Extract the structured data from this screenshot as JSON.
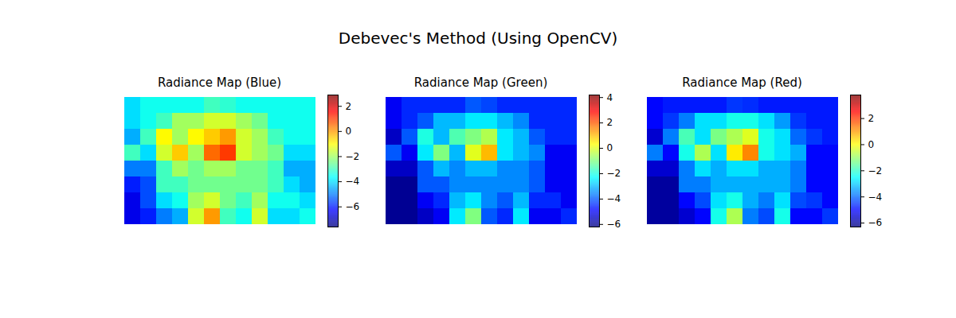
{
  "title": "Debevec's Method (Using OpenCV)",
  "chart_data": [
    {
      "type": "heatmap",
      "title": "Radiance Map (Blue)",
      "color": "jet",
      "tick_labels": false,
      "colorbar_range": [
        -7.6,
        2.9
      ],
      "colorbar_ticks": [
        -6,
        -4,
        -2,
        0,
        2
      ],
      "cells": [
        [
          -4,
          -3.5,
          -3.5,
          -3.5,
          -3.5,
          -3.0,
          -3.2,
          -3.5,
          -3.5,
          -3.5,
          -3.5,
          -3.5
        ],
        [
          -4,
          -3.5,
          -3,
          -2,
          -2,
          -1.5,
          -1.5,
          -2,
          -2.5,
          -3.5,
          -3.5,
          -3.5
        ],
        [
          -4.5,
          -3,
          -1,
          -2,
          -1,
          -0.5,
          0,
          -1.5,
          -2,
          -3,
          -3.5,
          -3.5
        ],
        [
          -3,
          -4,
          -1.5,
          -0.5,
          -2,
          0.5,
          1,
          -1.5,
          -2,
          -2.5,
          -4,
          -4
        ],
        [
          -5,
          -5,
          -3,
          -2,
          -2.5,
          -2,
          -2,
          -2.5,
          -2.5,
          -3,
          -4.5,
          -4.5
        ],
        [
          -6,
          -5.5,
          -3,
          -3,
          -2.5,
          -2.5,
          -2.5,
          -2.5,
          -2.5,
          -3,
          -4,
          -4.5
        ],
        [
          -6.5,
          -5.5,
          -4,
          -3.5,
          -2,
          -1.5,
          -2.5,
          -3,
          -2,
          -3.5,
          -3.5,
          -4
        ],
        [
          -6.5,
          -6,
          -5,
          -4.5,
          -1.5,
          0,
          -3,
          -3.5,
          -1.5,
          -4,
          -4,
          -3.5
        ]
      ]
    },
    {
      "type": "heatmap",
      "title": "Radiance Map (Green)",
      "color": "jet",
      "tick_labels": false,
      "colorbar_range": [
        -6.2,
        4.2
      ],
      "colorbar_ticks": [
        -6,
        -4,
        -2,
        0,
        2,
        4
      ],
      "cells": [
        [
          -5,
          -4.5,
          -4.5,
          -4.5,
          -4.5,
          -4,
          -4.2,
          -4.5,
          -4.5,
          -4.5,
          -4.5,
          -4.5
        ],
        [
          -5,
          -4.5,
          -4,
          -3,
          -3,
          -2.5,
          -2.5,
          -3,
          -3.5,
          -4.5,
          -4.5,
          -4.5
        ],
        [
          -5.5,
          -4,
          -2,
          -3,
          -1.5,
          -1,
          -0.5,
          -2.5,
          -3,
          -4,
          -4.5,
          -4.5
        ],
        [
          -4,
          -5,
          -2.5,
          -1,
          -3,
          0,
          1,
          -2.5,
          -3,
          -3.5,
          -5,
          -5
        ],
        [
          -5.5,
          -5.5,
          -4,
          -3,
          -3.5,
          -3,
          -3,
          -3.5,
          -3.5,
          -4,
          -5,
          -5
        ],
        [
          -6,
          -6,
          -4,
          -4,
          -3.5,
          -3.5,
          -3.5,
          -3.5,
          -3.5,
          -4,
          -5,
          -5
        ],
        [
          -6,
          -6,
          -5,
          -4.5,
          -3,
          -2.5,
          -3.5,
          -4,
          -3,
          -4.5,
          -4.5,
          -5
        ],
        [
          -6,
          -6,
          -5.5,
          -5,
          -2.5,
          -1,
          -4,
          -4.5,
          -2.5,
          -5,
          -5,
          -4.5
        ]
      ]
    },
    {
      "type": "heatmap",
      "title": "Radiance Map (Red)",
      "color": "jet",
      "tick_labels": false,
      "colorbar_range": [
        -6.3,
        3.8
      ],
      "colorbar_ticks": [
        -6,
        -4,
        -2,
        0,
        2
      ],
      "cells": [
        [
          -5,
          -4.8,
          -4.8,
          -4.8,
          -4.8,
          -4.5,
          -4.6,
          -4.8,
          -4.8,
          -4.8,
          -4.8,
          -4.8
        ],
        [
          -5,
          -4.5,
          -3.8,
          -2.8,
          -2.8,
          -2.3,
          -2.3,
          -2.8,
          -3.5,
          -4.5,
          -4.8,
          -4.8
        ],
        [
          -5.5,
          -3.8,
          -1.8,
          -2.8,
          -1.3,
          -0.8,
          -0.3,
          -2.3,
          -2.8,
          -4,
          -4.5,
          -4.8
        ],
        [
          -3.8,
          -5,
          -2.3,
          -0.8,
          -2.8,
          0.2,
          1.2,
          -2.3,
          -2.8,
          -3.3,
          -5,
          -5
        ],
        [
          -5.5,
          -5.5,
          -3.8,
          -2.8,
          -3.3,
          -2.8,
          -2.8,
          -3.3,
          -3.3,
          -3.8,
          -5,
          -5
        ],
        [
          -6,
          -6,
          -3.8,
          -3.8,
          -3.3,
          -3.3,
          -3.3,
          -3.3,
          -3.3,
          -3.8,
          -5,
          -5
        ],
        [
          -6,
          -6,
          -5,
          -4.3,
          -2.8,
          -2.3,
          -3.3,
          -3.8,
          -2.8,
          -4.3,
          -4.5,
          -5
        ],
        [
          -6,
          -6,
          -5.5,
          -5,
          -2.3,
          -0.8,
          -3.8,
          -4.3,
          -2.3,
          -5,
          -5,
          -4.5
        ]
      ]
    }
  ]
}
